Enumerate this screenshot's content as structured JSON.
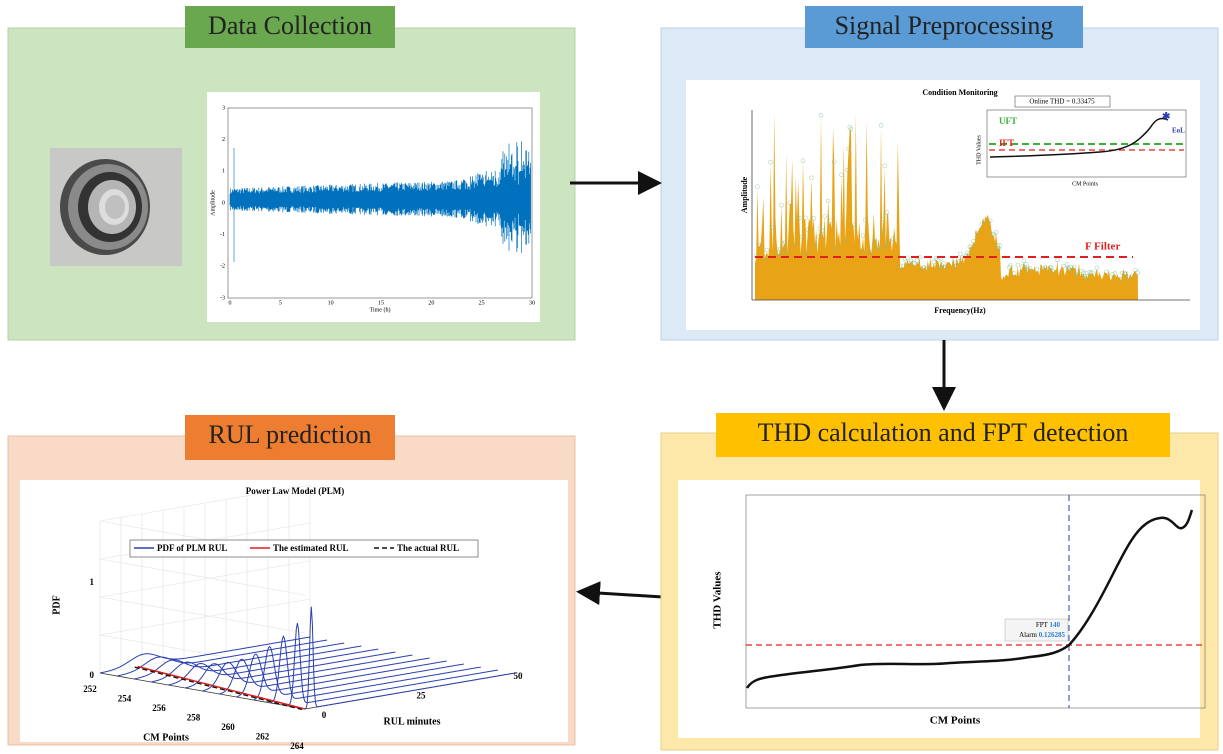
{
  "data_collection": {
    "title": "Data Collection",
    "plot": {
      "y_label": "Amplitude",
      "x_label": "Time (h)",
      "x_ticks": [
        0,
        5,
        10,
        15,
        20,
        25,
        30
      ],
      "y_ticks": [
        3,
        2,
        1,
        0,
        -1,
        -2,
        -3
      ]
    }
  },
  "signal_preprocessing": {
    "title": "Signal Preprocessing",
    "plot": {
      "title": "Condition Monitoring",
      "y_label": "Amplitude",
      "x_label": "Frequency(Hz)",
      "filter_label": "F Filter",
      "inset": {
        "readout": "Online THD = 0.33475",
        "upper_threshold": "UFT",
        "lower_threshold": "IFT",
        "end_label": "EoL",
        "y_label": "THD Values",
        "x_label": "CM Points"
      }
    }
  },
  "thd_fpt": {
    "title": "THD calculation and FPT detection",
    "plot": {
      "y_label": "THD Values",
      "x_label": "CM Points",
      "fpt_label": "FPT",
      "fpt_value": 140,
      "alarm_label": "Alarm",
      "alarm_value": 0.126285
    }
  },
  "rul_prediction": {
    "title": "RUL prediction",
    "plot": {
      "title": "Power Law Model (PLM)",
      "legend": [
        "PDF of PLM RUL",
        "The estimated RUL",
        "The actual RUL"
      ],
      "z_label": "PDF",
      "z_ticks": [
        0,
        1
      ],
      "x_label": "CM Points",
      "x_ticks": [
        252,
        254,
        256,
        258,
        260,
        262,
        264
      ],
      "y_label": "RUL minutes",
      "y_ticks": [
        0,
        25,
        50
      ]
    }
  }
}
